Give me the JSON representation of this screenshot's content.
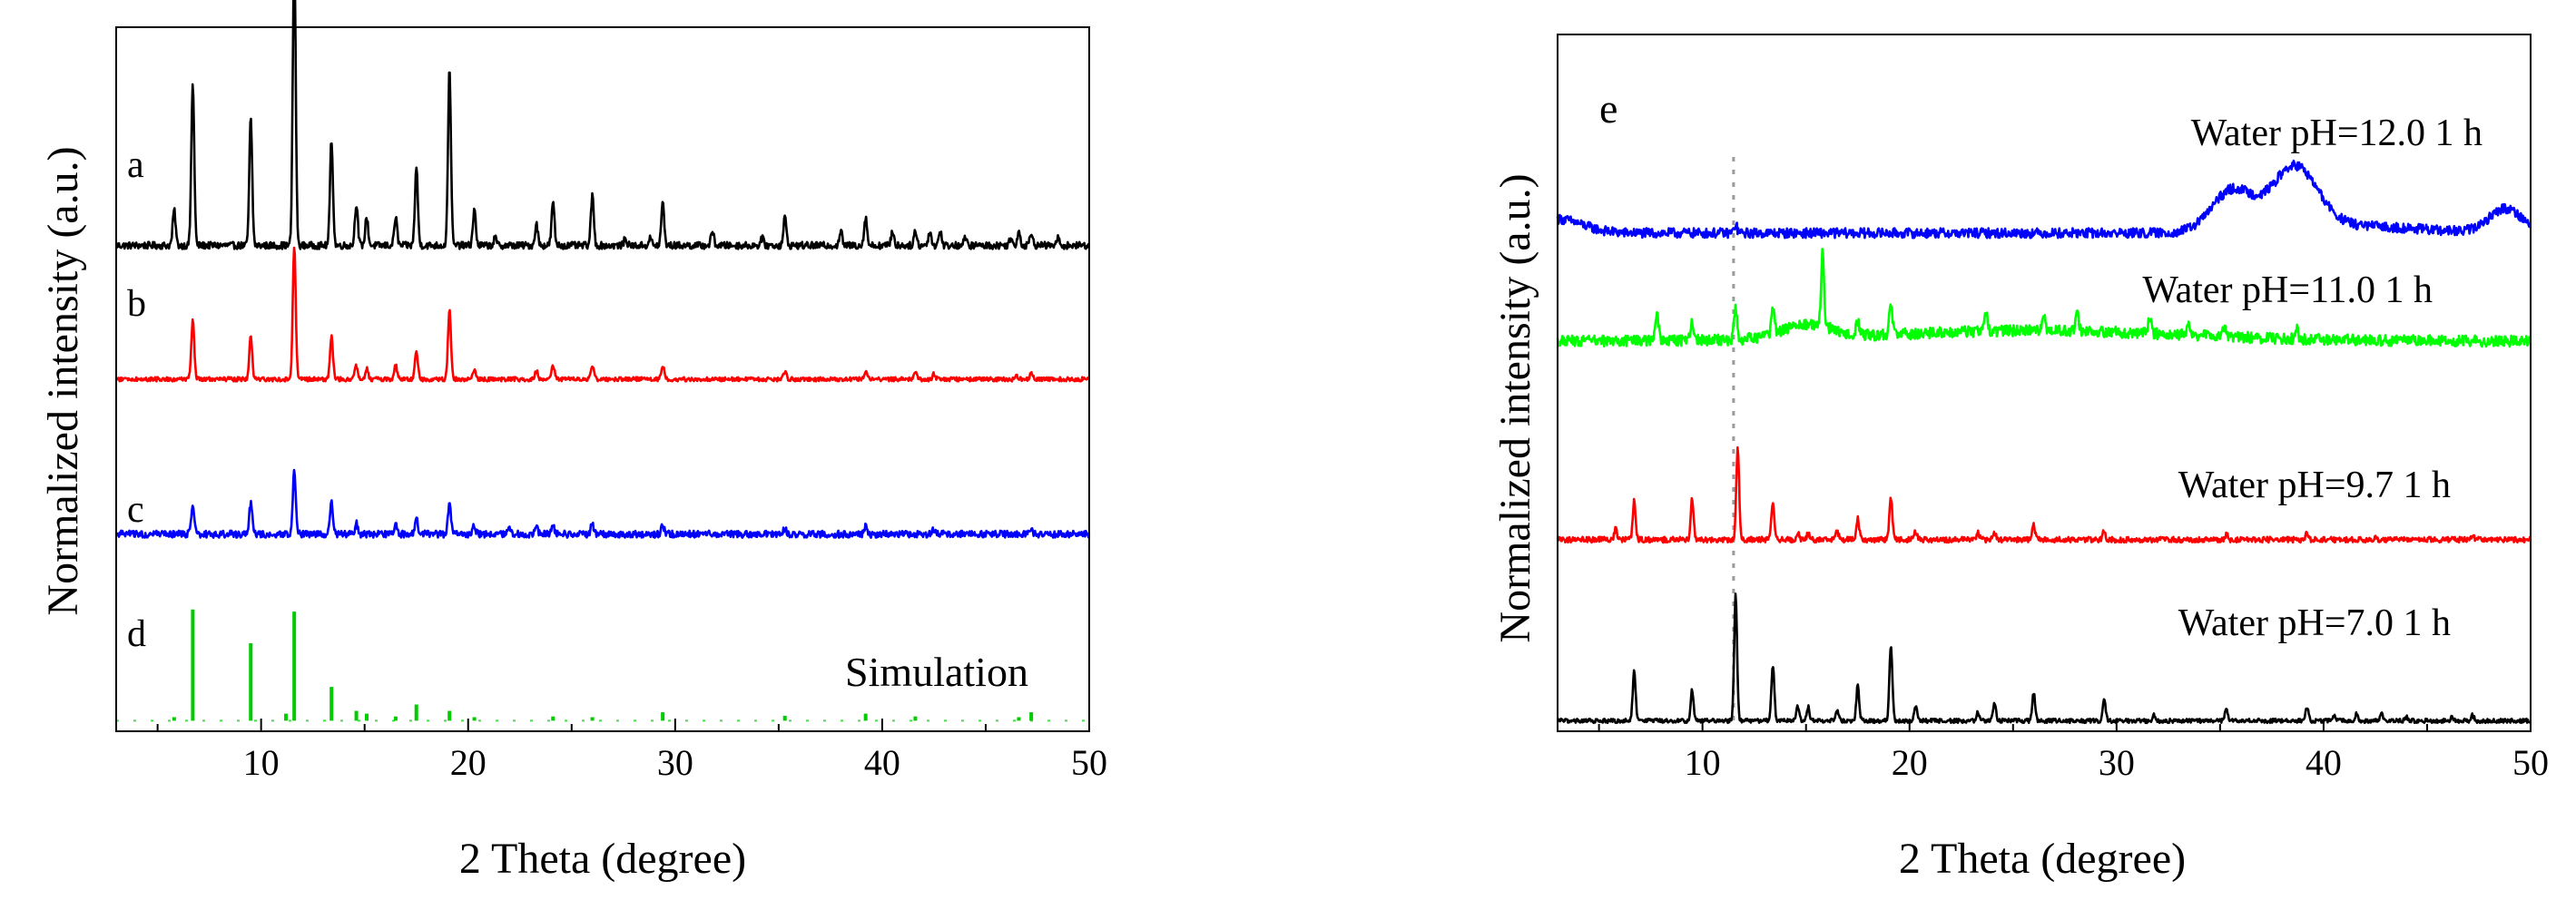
{
  "chart_data": [
    {
      "panel": "left",
      "type": "line",
      "xlabel": "2 Theta (degree)",
      "ylabel": "Normalized intensity (a.u.)",
      "xlim": [
        3,
        50
      ],
      "xticks": [
        10,
        20,
        30,
        40,
        50
      ],
      "xtick_labels": [
        "10",
        "20",
        "30",
        "40",
        "50"
      ],
      "ylim": [
        0,
        1
      ],
      "annotation": "Simulation",
      "series": [
        {
          "name": "a",
          "color": "#000000",
          "baseline": 0.69,
          "noise": 0.005,
          "peaks": [
            [
              5.8,
              0.05
            ],
            [
              6.7,
              0.23
            ],
            [
              9.5,
              0.18
            ],
            [
              11.6,
              0.42
            ],
            [
              13.4,
              0.15
            ],
            [
              14.6,
              0.06
            ],
            [
              15.1,
              0.04
            ],
            [
              16.5,
              0.04
            ],
            [
              17.5,
              0.11
            ],
            [
              19.1,
              0.25
            ],
            [
              20.3,
              0.05
            ],
            [
              21.3,
              0.01
            ],
            [
              23.3,
              0.03
            ],
            [
              24.1,
              0.06
            ],
            [
              26.0,
              0.07
            ],
            [
              27.6,
              0.01
            ],
            [
              28.8,
              0.01
            ],
            [
              29.4,
              0.06
            ],
            [
              31.8,
              0.02
            ],
            [
              34.2,
              0.01
            ],
            [
              35.3,
              0.04
            ],
            [
              38.0,
              0.02
            ],
            [
              39.2,
              0.04
            ],
            [
              40.5,
              0.02
            ],
            [
              41.6,
              0.02
            ],
            [
              42.3,
              0.02
            ],
            [
              42.8,
              0.02
            ],
            [
              44.0,
              0.01
            ],
            [
              46.2,
              0.01
            ],
            [
              46.6,
              0.02
            ],
            [
              47.2,
              0.02
            ],
            [
              48.5,
              0.01
            ]
          ]
        },
        {
          "name": "b",
          "color": "#ff0000",
          "baseline": 0.5,
          "noise": 0.003,
          "peaks": [
            [
              6.7,
              0.085
            ],
            [
              9.5,
              0.06
            ],
            [
              11.6,
              0.19
            ],
            [
              13.4,
              0.06
            ],
            [
              14.6,
              0.02
            ],
            [
              15.1,
              0.015
            ],
            [
              16.5,
              0.02
            ],
            [
              17.5,
              0.04
            ],
            [
              19.1,
              0.1
            ],
            [
              20.3,
              0.015
            ],
            [
              23.3,
              0.012
            ],
            [
              24.1,
              0.02
            ],
            [
              26.0,
              0.02
            ],
            [
              29.4,
              0.02
            ],
            [
              35.3,
              0.012
            ],
            [
              39.2,
              0.01
            ],
            [
              41.6,
              0.01
            ],
            [
              42.5,
              0.008
            ],
            [
              46.5,
              0.005
            ],
            [
              47.2,
              0.008
            ]
          ]
        },
        {
          "name": "c",
          "color": "#0000ff",
          "baseline": 0.28,
          "noise": 0.005,
          "peaks": [
            [
              6.7,
              0.04
            ],
            [
              9.5,
              0.045
            ],
            [
              11.6,
              0.09
            ],
            [
              13.4,
              0.045
            ],
            [
              14.6,
              0.015
            ],
            [
              16.5,
              0.013
            ],
            [
              17.5,
              0.025
            ],
            [
              19.1,
              0.045
            ],
            [
              20.3,
              0.012
            ],
            [
              22.0,
              0.008
            ],
            [
              23.3,
              0.01
            ],
            [
              24.1,
              0.012
            ],
            [
              26.0,
              0.015
            ],
            [
              29.4,
              0.012
            ],
            [
              35.3,
              0.008
            ],
            [
              39.2,
              0.01
            ],
            [
              42.5,
              0.006
            ],
            [
              47.2,
              0.006
            ]
          ]
        },
        {
          "name": "d",
          "color": "#00cc00",
          "kind": "stick",
          "baseline": 0.015,
          "sticks": [
            [
              5.8,
              0.005
            ],
            [
              6.7,
              0.158
            ],
            [
              9.5,
              0.11
            ],
            [
              11.2,
              0.01
            ],
            [
              11.6,
              0.155
            ],
            [
              13.4,
              0.048
            ],
            [
              14.6,
              0.014
            ],
            [
              15.1,
              0.01
            ],
            [
              16.5,
              0.006
            ],
            [
              17.5,
              0.023
            ],
            [
              19.1,
              0.014
            ],
            [
              20.3,
              0.005
            ],
            [
              24.1,
              0.006
            ],
            [
              26.0,
              0.005
            ],
            [
              29.4,
              0.012
            ],
            [
              35.3,
              0.007
            ],
            [
              39.2,
              0.01
            ],
            [
              41.6,
              0.006
            ],
            [
              46.6,
              0.005
            ],
            [
              47.2,
              0.012
            ]
          ]
        }
      ]
    },
    {
      "panel": "right",
      "panel_label": "e",
      "type": "line",
      "xlabel": "2 Theta (degree)",
      "ylabel": "Normalized intensity (a.u.)",
      "xlim": [
        3,
        50
      ],
      "xticks": [
        10,
        20,
        30,
        40,
        50
      ],
      "xtick_labels": [
        "10",
        "20",
        "30",
        "40",
        "50"
      ],
      "ylim": [
        0,
        1
      ],
      "reference_line_x": 11.5,
      "series": [
        {
          "name": "Water pH=12.0 1 h",
          "color": "#0000ff",
          "baseline": 0.715,
          "noise": 0.007,
          "broad": [
            [
              3.0,
              0.02,
              1.2
            ],
            [
              35.6,
              0.06,
              1.0
            ],
            [
              38.6,
              0.09,
              1.1
            ],
            [
              48.8,
              0.035,
              0.8
            ],
            [
              41.5,
              0.01,
              3.0
            ]
          ],
          "peaks": [
            [
              11.6,
              0.012
            ]
          ]
        },
        {
          "name": "Water pH=11.0 1 h",
          "color": "#00ff00",
          "baseline": 0.56,
          "noise": 0.008,
          "broad": [
            [
              26.0,
              0.015,
              7.0
            ],
            [
              15.0,
              0.02,
              1.2
            ]
          ],
          "peaks": [
            [
              7.8,
              0.04
            ],
            [
              9.5,
              0.03
            ],
            [
              11.6,
              0.045
            ],
            [
              13.4,
              0.035
            ],
            [
              15.8,
              0.11
            ],
            [
              17.5,
              0.02
            ],
            [
              19.1,
              0.045
            ],
            [
              23.7,
              0.025
            ],
            [
              26.5,
              0.02
            ],
            [
              28.1,
              0.028
            ],
            [
              31.6,
              0.025
            ],
            [
              33.5,
              0.015
            ],
            [
              35.2,
              0.013
            ],
            [
              38.7,
              0.018
            ]
          ]
        },
        {
          "name": "Water pH=9.7 1 h",
          "color": "#ff0000",
          "baseline": 0.275,
          "noise": 0.004,
          "peaks": [
            [
              5.8,
              0.015
            ],
            [
              6.7,
              0.055
            ],
            [
              9.5,
              0.06
            ],
            [
              11.7,
              0.13
            ],
            [
              13.4,
              0.055
            ],
            [
              14.6,
              0.01
            ],
            [
              15.1,
              0.008
            ],
            [
              16.5,
              0.012
            ],
            [
              17.5,
              0.03
            ],
            [
              19.1,
              0.06
            ],
            [
              20.3,
              0.012
            ],
            [
              23.3,
              0.01
            ],
            [
              24.1,
              0.01
            ],
            [
              26.0,
              0.02
            ],
            [
              29.4,
              0.012
            ],
            [
              35.3,
              0.008
            ],
            [
              39.2,
              0.01
            ],
            [
              42.5,
              0.005
            ],
            [
              47.2,
              0.006
            ]
          ]
        },
        {
          "name": "Water pH=7.0 1 h",
          "color": "#000000",
          "baseline": 0.015,
          "noise": 0.003,
          "peaks": [
            [
              6.7,
              0.07
            ],
            [
              9.5,
              0.045
            ],
            [
              11.6,
              0.18
            ],
            [
              13.4,
              0.08
            ],
            [
              14.6,
              0.02
            ],
            [
              15.1,
              0.02
            ],
            [
              16.5,
              0.015
            ],
            [
              17.5,
              0.05
            ],
            [
              19.1,
              0.11
            ],
            [
              20.3,
              0.02
            ],
            [
              23.3,
              0.012
            ],
            [
              24.1,
              0.025
            ],
            [
              26.0,
              0.04
            ],
            [
              29.4,
              0.03
            ],
            [
              31.8,
              0.008
            ],
            [
              35.3,
              0.02
            ],
            [
              39.2,
              0.02
            ],
            [
              40.5,
              0.008
            ],
            [
              41.6,
              0.01
            ],
            [
              42.8,
              0.01
            ],
            [
              44.0,
              0.005
            ],
            [
              46.2,
              0.005
            ],
            [
              47.2,
              0.008
            ]
          ]
        }
      ]
    }
  ]
}
